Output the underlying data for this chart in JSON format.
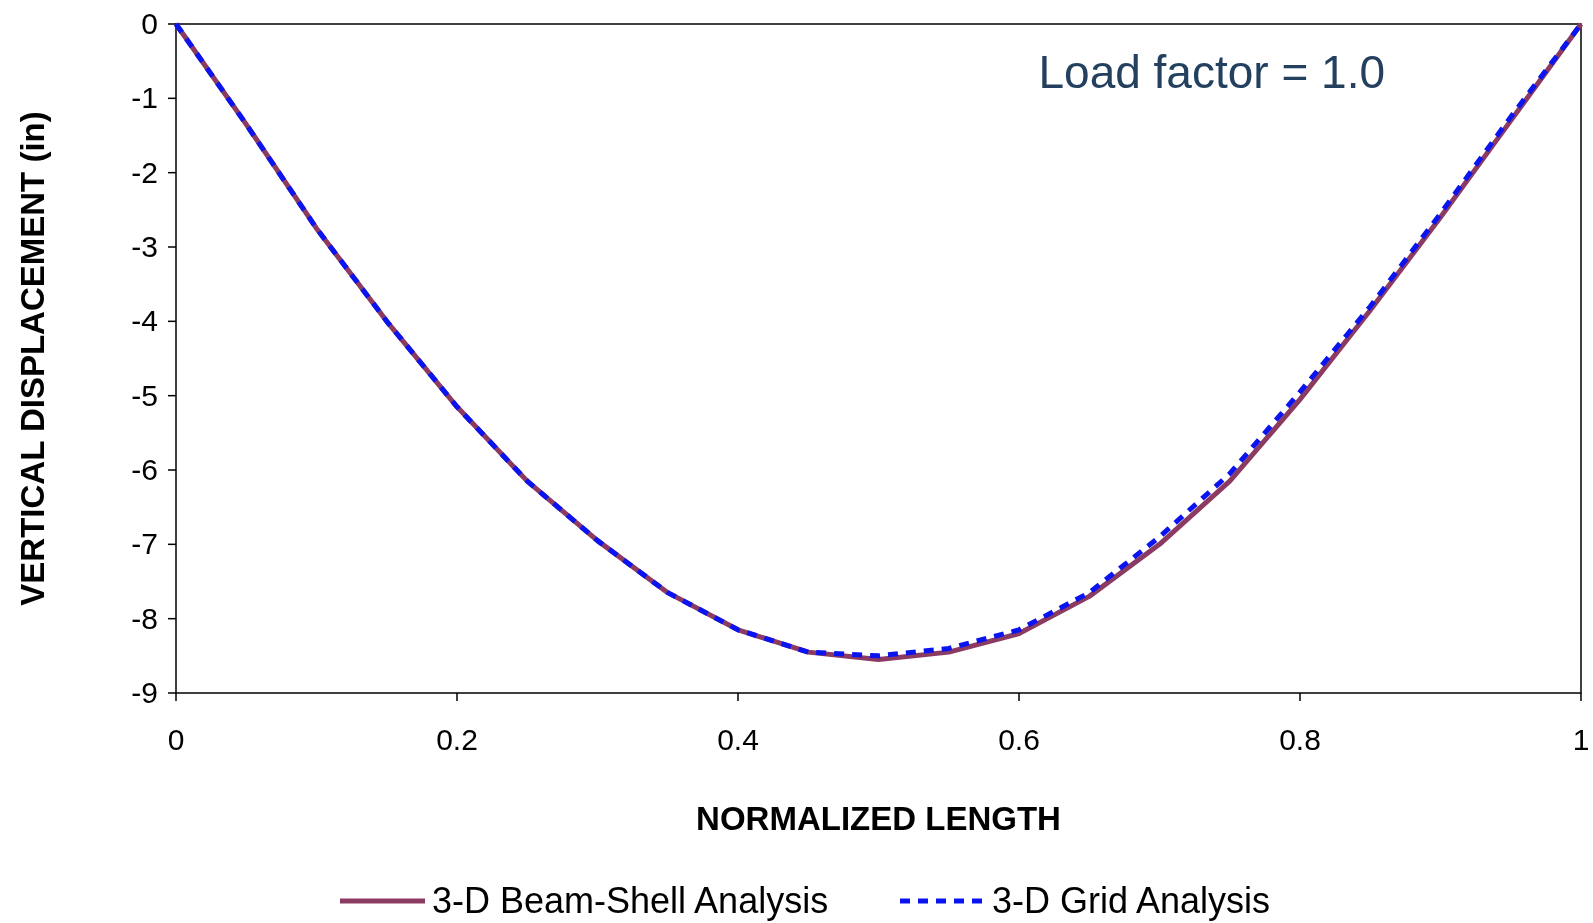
{
  "chart_data": {
    "type": "line",
    "xlabel": "NORMALIZED LENGTH",
    "ylabel": "VERTICAL DISPLACEMENT (in)",
    "annotations": [
      "Load factor = 1.0"
    ],
    "xlim": [
      0,
      1
    ],
    "xticks": [
      0,
      0.2,
      0.4,
      0.6,
      0.8,
      1
    ],
    "ylim": [
      -9,
      0
    ],
    "yticks": [
      0,
      -1,
      -2,
      -3,
      -4,
      -5,
      -6,
      -7,
      -8,
      -9
    ],
    "grid": false,
    "legend": "bottom",
    "marker": "none",
    "series": [
      {
        "name": "3-D Beam-Shell Analysis",
        "color": "#8b3a62",
        "line_style": "solid",
        "x": [
          0,
          0.05,
          0.1,
          0.15,
          0.2,
          0.25,
          0.3,
          0.35,
          0.4,
          0.45,
          0.5,
          0.55,
          0.6,
          0.65,
          0.7,
          0.75,
          0.8,
          0.85,
          0.9,
          0.95,
          1
        ],
        "values": [
          0,
          -1.35,
          -2.75,
          -4.0,
          -5.15,
          -6.15,
          -6.95,
          -7.65,
          -8.15,
          -8.45,
          -8.55,
          -8.45,
          -8.2,
          -7.7,
          -7.0,
          -6.15,
          -5.05,
          -3.85,
          -2.6,
          -1.3,
          0
        ]
      },
      {
        "name": "3-D Grid Analysis",
        "color": "#0a14f0",
        "line_style": "dashed",
        "x": [
          0,
          0.05,
          0.1,
          0.15,
          0.2,
          0.25,
          0.3,
          0.35,
          0.4,
          0.45,
          0.5,
          0.55,
          0.6,
          0.65,
          0.7,
          0.75,
          0.8,
          0.85,
          0.9,
          0.95,
          1
        ],
        "values": [
          0,
          -1.35,
          -2.75,
          -4.0,
          -5.15,
          -6.15,
          -6.95,
          -7.65,
          -8.15,
          -8.45,
          -8.5,
          -8.4,
          -8.15,
          -7.65,
          -6.9,
          -6.05,
          -4.95,
          -3.8,
          -2.55,
          -1.25,
          0
        ]
      }
    ]
  }
}
